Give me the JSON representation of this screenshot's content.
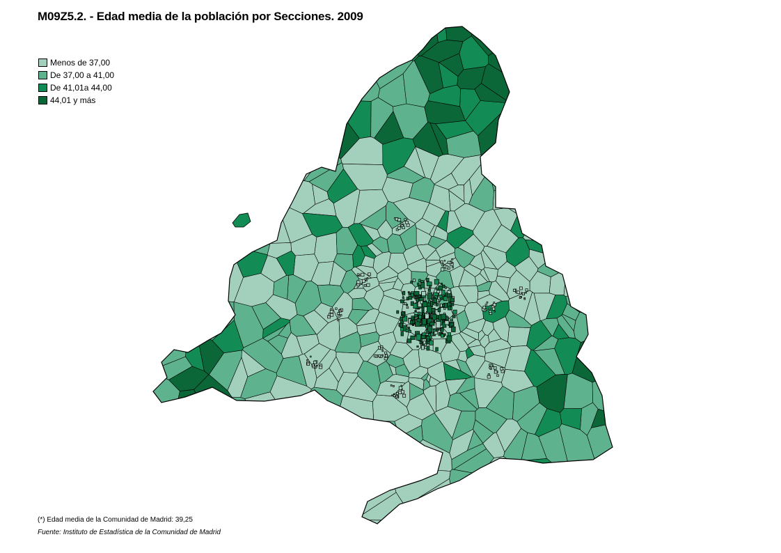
{
  "title": "M09Z5.2. - Edad media de la población por Secciones. 2009",
  "legend": {
    "items": [
      {
        "label": "Menos de 37,00",
        "color": "#a3d0bd"
      },
      {
        "label": "De 37,00 a 41,00",
        "color": "#5fb28e"
      },
      {
        "label": "De 41,01a 44,00",
        "color": "#128c54"
      },
      {
        "label": "44,01 y más",
        "color": "#0b6638"
      }
    ]
  },
  "map": {
    "region": "Comunidad de Madrid",
    "boundary_color": "#000000"
  },
  "footer": {
    "note": "(*) Edad media de la Comunidad de Madrid: 39,25",
    "source": "Fuente: Instituto de Estadística de la Comunidad de Madrid"
  }
}
